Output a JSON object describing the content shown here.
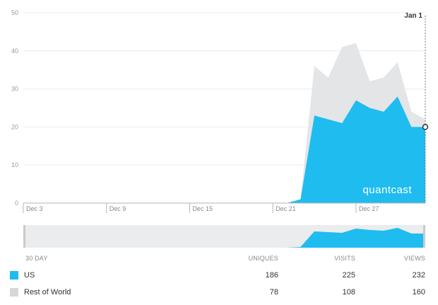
{
  "chart_data": {
    "type": "area",
    "stacked": true,
    "x": [
      "Dec 3",
      "Dec 4",
      "Dec 5",
      "Dec 6",
      "Dec 7",
      "Dec 8",
      "Dec 9",
      "Dec 10",
      "Dec 11",
      "Dec 12",
      "Dec 13",
      "Dec 14",
      "Dec 15",
      "Dec 16",
      "Dec 17",
      "Dec 18",
      "Dec 19",
      "Dec 20",
      "Dec 21",
      "Dec 22",
      "Dec 23",
      "Dec 24",
      "Dec 25",
      "Dec 26",
      "Dec 27",
      "Dec 28",
      "Dec 29",
      "Dec 30",
      "Dec 31",
      "Jan 1"
    ],
    "series": [
      {
        "name": "US",
        "color": "#1fbcef",
        "values": [
          0,
          0,
          0,
          0,
          0,
          0,
          0,
          0,
          0,
          0,
          0,
          0,
          0,
          0,
          0,
          0,
          0,
          0,
          0,
          0,
          1,
          23,
          22,
          21,
          27,
          25,
          24,
          28,
          20,
          20
        ]
      },
      {
        "name": "Rest of World",
        "color": "#e3e5e7",
        "values": [
          0,
          0,
          0,
          0,
          0,
          0,
          0,
          0,
          0,
          0,
          0,
          0,
          0,
          0,
          0,
          0,
          0,
          0,
          0,
          0,
          0,
          13,
          11,
          20,
          15,
          7,
          9,
          9,
          4,
          2
        ]
      }
    ],
    "x_tick_labels": [
      "Dec 3",
      "Dec 9",
      "Dec 15",
      "Dec 21",
      "Dec 27"
    ],
    "y_ticks": [
      0,
      10,
      20,
      30,
      40,
      50
    ],
    "ylim": [
      0,
      50
    ],
    "grid": true,
    "marker_label": "Jan 1",
    "watermark": "quantcast"
  },
  "table": {
    "period_label": "30 DAY",
    "columns": [
      "UNIQUES",
      "VISITS",
      "VIEWS"
    ],
    "rows": [
      {
        "name": "US",
        "color": "#1fbcef",
        "uniques": "186",
        "visits": "225",
        "views": "232"
      },
      {
        "name": "Rest of World",
        "color": "#d6d7d8",
        "uniques": "78",
        "visits": "108",
        "views": "160"
      }
    ]
  }
}
